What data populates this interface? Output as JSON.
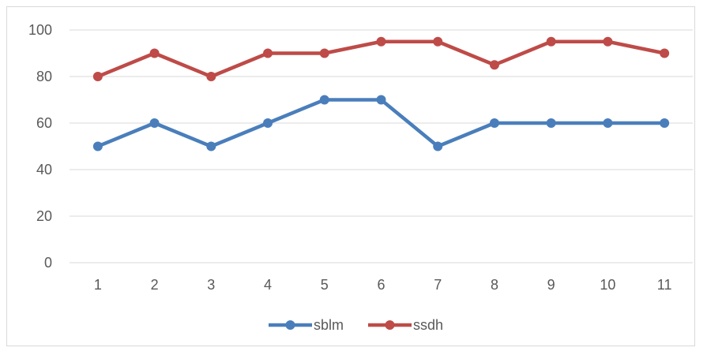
{
  "chart_data": {
    "type": "line",
    "x": [
      "1",
      "2",
      "3",
      "4",
      "5",
      "6",
      "7",
      "8",
      "9",
      "10",
      "11"
    ],
    "series": [
      {
        "name": "sblm",
        "color": "#4a7ebb",
        "values": [
          50,
          60,
          50,
          60,
          70,
          70,
          50,
          60,
          60,
          60,
          60
        ]
      },
      {
        "name": "ssdh",
        "color": "#be4b48",
        "values": [
          80,
          90,
          80,
          90,
          90,
          95,
          95,
          85,
          95,
          95,
          90
        ]
      }
    ],
    "ylim": [
      0,
      100
    ],
    "yticks": [
      "0",
      "20",
      "40",
      "60",
      "80",
      "100"
    ],
    "grid": "horizontal",
    "gridColor": "#d9d9d9",
    "legend": "bottom",
    "markers": "circle"
  }
}
